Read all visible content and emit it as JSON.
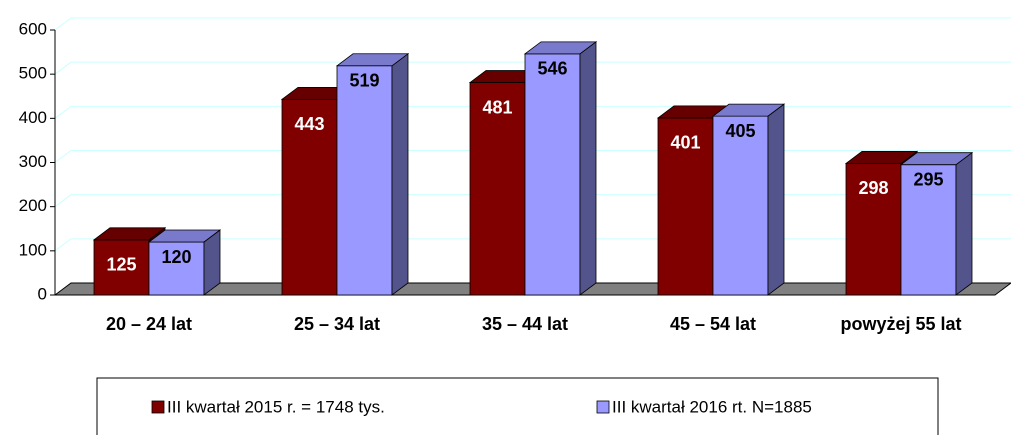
{
  "chart_data": {
    "type": "bar3d",
    "categories": [
      "20 – 24 lat",
      "25 – 34 lat",
      "35 – 44 lat",
      "45 – 54 lat",
      "powyżej 55 lat"
    ],
    "series": [
      {
        "name": "III kwartał 2015 r. = 1748 tys.",
        "color": "#800000",
        "values": [
          125,
          443,
          481,
          401,
          298
        ]
      },
      {
        "name": "III kwartał 2016 rt. N=1885",
        "color": "#9999ff",
        "values": [
          120,
          519,
          546,
          405,
          295
        ]
      }
    ],
    "ylim": [
      0,
      600
    ],
    "yticks": [
      0,
      100,
      200,
      300,
      400,
      500,
      600
    ],
    "grid": true,
    "legend": "bottom"
  }
}
